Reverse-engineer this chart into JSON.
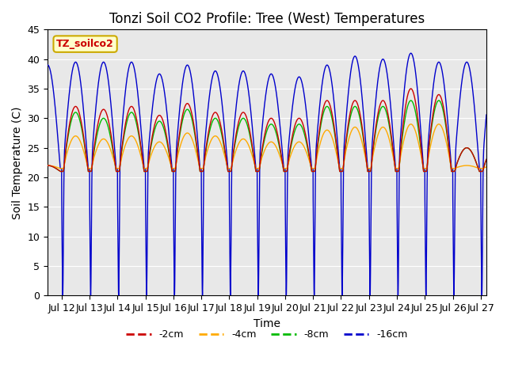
{
  "title": "Tonzi Soil CO2 Profile: Tree (West) Temperatures",
  "xlabel": "Time",
  "ylabel": "Soil Temperature (C)",
  "ylim": [
    0,
    45
  ],
  "xlim_days": [
    11.5,
    27.2
  ],
  "xtick_days": [
    12,
    13,
    14,
    15,
    16,
    17,
    18,
    19,
    20,
    21,
    22,
    23,
    24,
    25,
    26,
    27
  ],
  "xtick_labels": [
    "Jul 12",
    "Jul 13",
    "Jul 14",
    "Jul 15",
    "Jul 16",
    "Jul 17",
    "Jul 18",
    "Jul 19",
    "Jul 20",
    "Jul 21",
    "Jul 22",
    "Jul 23",
    "Jul 24",
    "Jul 25",
    "Jul 26",
    "Jul 27"
  ],
  "background_color": "#e8e8e8",
  "figure_background": "#ffffff",
  "series": [
    {
      "label": "-2cm",
      "color": "#cc0000"
    },
    {
      "label": "-4cm",
      "color": "#ffaa00"
    },
    {
      "label": "-8cm",
      "color": "#00bb00"
    },
    {
      "label": "-16cm",
      "color": "#0000cc"
    }
  ],
  "legend_text": "TZ_soilco2",
  "legend_text_color": "#cc0000",
  "legend_box_facecolor": "#ffffcc",
  "legend_box_edgecolor": "#ccaa00",
  "title_fontsize": 12,
  "axis_label_fontsize": 10,
  "tick_fontsize": 9
}
